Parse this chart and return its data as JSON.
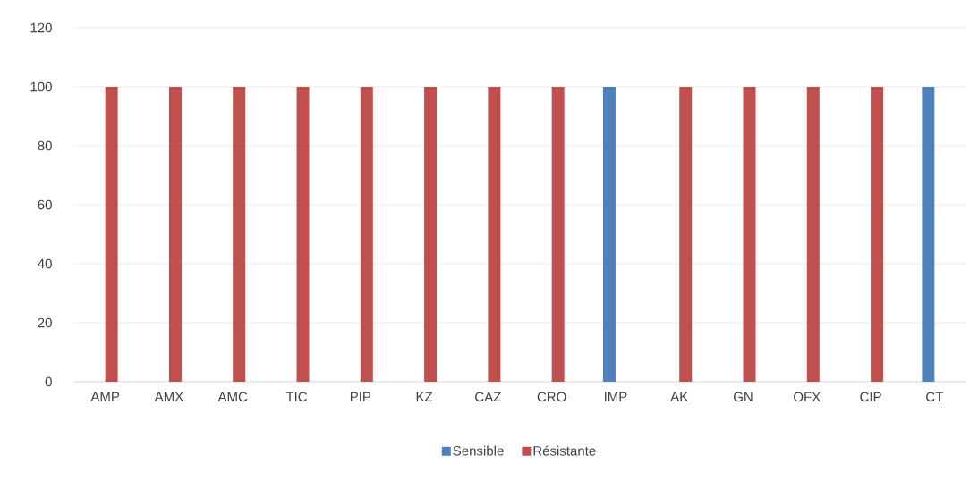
{
  "chart_data": {
    "type": "bar",
    "categories": [
      "AMP",
      "AMX",
      "AMC",
      "TIC",
      "PIP",
      "KZ",
      "CAZ",
      "CRO",
      "IMP",
      "AK",
      "GN",
      "OFX",
      "CIP",
      "CT"
    ],
    "series": [
      {
        "name": "Sensible",
        "color": "#4f81bd",
        "values": [
          0,
          0,
          0,
          0,
          0,
          0,
          0,
          0,
          100,
          0,
          0,
          0,
          0,
          100
        ]
      },
      {
        "name": "Résistante",
        "color": "#c0504d",
        "values": [
          100,
          100,
          100,
          100,
          100,
          100,
          100,
          100,
          0,
          100,
          100,
          100,
          100,
          0
        ]
      }
    ],
    "ylim": [
      0,
      120
    ],
    "yticks": [
      0,
      20,
      40,
      60,
      80,
      100,
      120
    ],
    "grid": "y",
    "legend": "bottom"
  }
}
